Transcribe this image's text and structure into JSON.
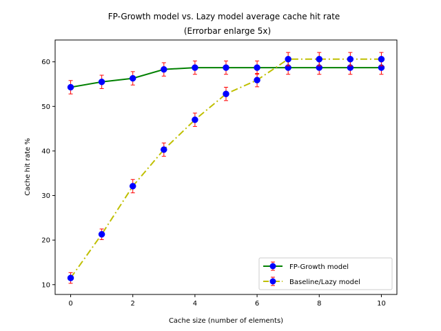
{
  "chart_data": {
    "type": "line",
    "title_lines": [
      "FP-Growth model vs. Lazy model average cache hit rate",
      "(Errorbar enlarge 5x)"
    ],
    "xlabel": "Cache size (number of elements)",
    "ylabel": "Cache hit rate %",
    "xlim": [
      -0.5,
      10.5
    ],
    "ylim": [
      7.8,
      64.9
    ],
    "xticks": [
      "0",
      "2",
      "4",
      "6",
      "8",
      "10"
    ],
    "yticks": [
      "10",
      "20",
      "30",
      "40",
      "50",
      "60"
    ],
    "grid": false,
    "legend_position": "lower-right",
    "x": [
      0,
      1,
      2,
      3,
      4,
      5,
      6,
      7,
      8,
      9,
      10
    ],
    "series": [
      {
        "name": "FP-Growth model",
        "color": "#008000",
        "linestyle": "solid",
        "marker_color": "#0000ff",
        "errorbar_color": "#ff0000",
        "values": [
          54.3,
          55.5,
          56.3,
          58.3,
          58.7,
          58.7,
          58.7,
          58.7,
          58.7,
          58.7,
          58.7
        ],
        "errors": [
          1.5,
          1.5,
          1.5,
          1.5,
          1.5,
          1.5,
          1.5,
          1.5,
          1.5,
          1.5,
          1.5
        ]
      },
      {
        "name": "Baseline/Lazy model",
        "color": "#bfbf00",
        "linestyle": "dashdot",
        "marker_color": "#0000ff",
        "errorbar_color": "#ff0000",
        "values": [
          11.5,
          21.3,
          32.1,
          40.3,
          47.0,
          52.8,
          55.9,
          60.6,
          60.6,
          60.6,
          60.6
        ],
        "errors": [
          1.2,
          1.2,
          1.5,
          1.5,
          1.5,
          1.5,
          1.5,
          1.5,
          1.5,
          1.5,
          1.5
        ]
      }
    ]
  }
}
